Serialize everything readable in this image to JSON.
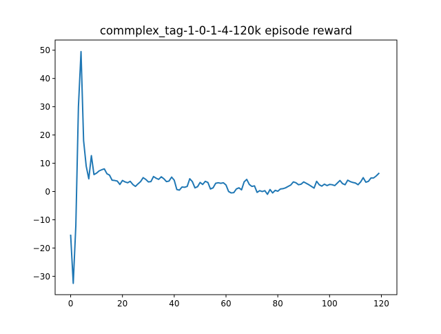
{
  "chart_data": {
    "type": "line",
    "title": "commplex_tag-1-0-1-4-120k episode reward",
    "xlabel": "",
    "ylabel": "",
    "xlim": [
      -6,
      126
    ],
    "ylim": [
      -36.5,
      53.6
    ],
    "xticks": [
      0,
      20,
      40,
      60,
      80,
      100,
      120
    ],
    "yticks": [
      -30,
      -20,
      -10,
      0,
      10,
      20,
      30,
      40,
      50
    ],
    "grid": false,
    "legend": "none",
    "colors": {
      "line": "#1f77b4",
      "axes": "#000000",
      "background": "#ffffff"
    },
    "series": [
      {
        "x": [
          0,
          1,
          2,
          3,
          4,
          5,
          6,
          7,
          8,
          9,
          10,
          11,
          12,
          13,
          14,
          15,
          16,
          17,
          18,
          19,
          20,
          21,
          22,
          23,
          24,
          25,
          26,
          27,
          28,
          29,
          30,
          31,
          32,
          33,
          34,
          35,
          36,
          37,
          38,
          39,
          40,
          41,
          42,
          43,
          44,
          45,
          46,
          47,
          48,
          49,
          50,
          51,
          52,
          53,
          54,
          55,
          56,
          57,
          58,
          59,
          60,
          61,
          62,
          63,
          64,
          65,
          66,
          67,
          68,
          69,
          70,
          71,
          72,
          73,
          74,
          75,
          76,
          77,
          78,
          79,
          80,
          81,
          82,
          83,
          84,
          85,
          86,
          87,
          88,
          89,
          90,
          91,
          92,
          93,
          94,
          95,
          96,
          97,
          98,
          99,
          100,
          101,
          102,
          103,
          104,
          105,
          106,
          107,
          108,
          109,
          110,
          111,
          112,
          113,
          114,
          115,
          116,
          117,
          118,
          119
        ],
        "values": [
          -15.5,
          -32.5,
          -12,
          30,
          49.5,
          18,
          9,
          4.5,
          12.7,
          6,
          6.5,
          7.3,
          7.7,
          8,
          6.3,
          5.8,
          4,
          3.9,
          3.7,
          2.5,
          3.9,
          3.4,
          3.1,
          3.6,
          2.5,
          1.8,
          2.7,
          3.5,
          4.9,
          4.3,
          3.4,
          3.5,
          5.3,
          4.7,
          4.3,
          5.2,
          4.5,
          3.5,
          3.7,
          5.1,
          4,
          0.7,
          0.5,
          1.6,
          1.5,
          1.8,
          4.5,
          3.5,
          1.3,
          1.7,
          3.2,
          2.5,
          3.6,
          3.2,
          0.9,
          1.3,
          2.9,
          3.1,
          2.9,
          3.1,
          2.3,
          0,
          -0.5,
          -0.4,
          0.9,
          1.3,
          0.6,
          3.4,
          4.3,
          2.5,
          1.8,
          2,
          -0.3,
          0.3,
          0,
          0.3,
          -1,
          0.7,
          -0.5,
          0.4,
          0.1,
          0.9,
          1,
          1.3,
          1.8,
          2.3,
          3.4,
          3.1,
          2.4,
          2.6,
          3.4,
          2.9,
          2.4,
          1.8,
          1.2,
          3.6,
          2.4,
          1.9,
          2.6,
          2.1,
          2.5,
          2.4,
          2.1,
          3,
          3.9,
          2.8,
          2.4,
          4,
          3.5,
          3.2,
          3,
          2.4,
          3.4,
          4.9,
          3.3,
          3.6,
          4.8,
          4.8,
          5.5,
          6.4
        ]
      }
    ]
  }
}
